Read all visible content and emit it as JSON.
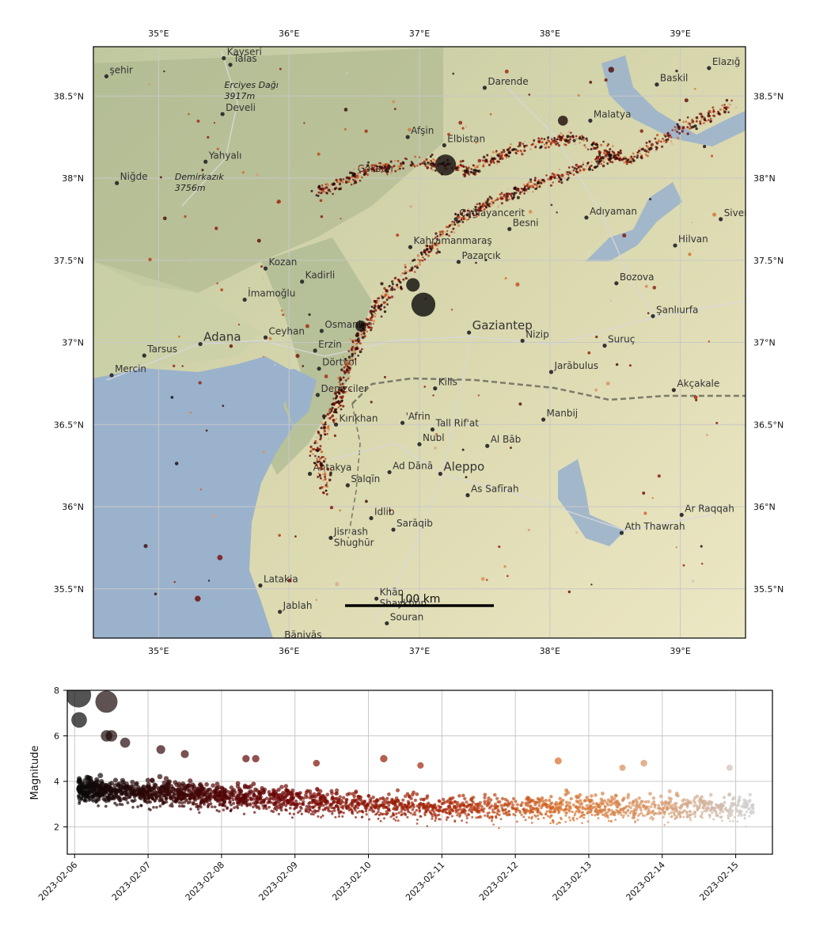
{
  "chart_data": [
    {
      "type": "scatter",
      "title": "",
      "lon_ticks": [
        "35°E",
        "36°E",
        "37°E",
        "38°E",
        "39°E"
      ],
      "lat_ticks": [
        "38.5°N",
        "38°N",
        "37.5°N",
        "37°N",
        "36.5°N",
        "36°N",
        "35.5°N"
      ],
      "xlim": [
        34.5,
        39.5
      ],
      "ylim": [
        35.2,
        38.8
      ],
      "scale_bar": "100 km",
      "places": [
        {
          "name": "Kayseri",
          "lon": 35.5,
          "lat": 38.73
        },
        {
          "name": "Talas",
          "lon": 35.55,
          "lat": 38.69
        },
        {
          "name": "şehir",
          "lon": 34.6,
          "lat": 38.62
        },
        {
          "name": "Erciyes Dağı",
          "lon": 35.48,
          "lat": 38.53,
          "italic": true
        },
        {
          "name": "3917m",
          "lon": 35.48,
          "lat": 38.53,
          "italic": true,
          "sub": true
        },
        {
          "name": "Develi",
          "lon": 35.49,
          "lat": 38.39
        },
        {
          "name": "Darende",
          "lon": 37.5,
          "lat": 38.55
        },
        {
          "name": "Elazığ",
          "lon": 39.22,
          "lat": 38.67
        },
        {
          "name": "Baskil",
          "lon": 38.82,
          "lat": 38.57
        },
        {
          "name": "Malatya",
          "lon": 38.31,
          "lat": 38.35
        },
        {
          "name": "Yahyalı",
          "lon": 35.36,
          "lat": 38.1
        },
        {
          "name": "Niğde",
          "lon": 34.68,
          "lat": 37.97
        },
        {
          "name": "Demirkazık",
          "lon": 35.1,
          "lat": 37.97,
          "italic": true
        },
        {
          "name": "3756m",
          "lon": 35.1,
          "lat": 37.97,
          "italic": true,
          "sub": true
        },
        {
          "name": "Afşin",
          "lon": 36.91,
          "lat": 38.25
        },
        {
          "name": "Elbistan",
          "lon": 37.19,
          "lat": 38.2
        },
        {
          "name": "Göksun",
          "lon": 36.5,
          "lat": 38.02
        },
        {
          "name": "Çağlayancerit",
          "lon": 37.28,
          "lat": 37.75
        },
        {
          "name": "Besni",
          "lon": 37.69,
          "lat": 37.69
        },
        {
          "name": "Adıyaman",
          "lon": 38.28,
          "lat": 37.76
        },
        {
          "name": "Siverek",
          "lon": 39.31,
          "lat": 37.75
        },
        {
          "name": "Hilvan",
          "lon": 38.96,
          "lat": 37.59
        },
        {
          "name": "Kahramanmaraş",
          "lon": 36.93,
          "lat": 37.58
        },
        {
          "name": "Pazarcık",
          "lon": 37.3,
          "lat": 37.49
        },
        {
          "name": "Kozan",
          "lon": 35.82,
          "lat": 37.45
        },
        {
          "name": "Kadirli",
          "lon": 36.1,
          "lat": 37.37
        },
        {
          "name": "Bozova",
          "lon": 38.51,
          "lat": 37.36
        },
        {
          "name": "İmamoğlu",
          "lon": 35.66,
          "lat": 37.26
        },
        {
          "name": "Şanlıurfa",
          "lon": 38.79,
          "lat": 37.16
        },
        {
          "name": "Gaziantep",
          "lon": 37.38,
          "lat": 37.06
        },
        {
          "name": "Nizip",
          "lon": 37.79,
          "lat": 37.01
        },
        {
          "name": "Suruç",
          "lon": 38.42,
          "lat": 36.98
        },
        {
          "name": "Adana",
          "lon": 35.32,
          "lat": 36.99
        },
        {
          "name": "Tarsus",
          "lon": 34.89,
          "lat": 36.92
        },
        {
          "name": "Ceyhan",
          "lon": 35.82,
          "lat": 37.03
        },
        {
          "name": "Osmaniye",
          "lon": 36.25,
          "lat": 37.07
        },
        {
          "name": "Erzin",
          "lon": 36.2,
          "lat": 36.95
        },
        {
          "name": "Dörtyol",
          "lon": 36.23,
          "lat": 36.84
        },
        {
          "name": "Mercin",
          "lon": 34.64,
          "lat": 36.8
        },
        {
          "name": "Jarābulus",
          "lon": 38.01,
          "lat": 36.82
        },
        {
          "name": "Kilis",
          "lon": 37.12,
          "lat": 36.72
        },
        {
          "name": "Akçakale",
          "lon": 38.95,
          "lat": 36.71
        },
        {
          "name": "Denizciler",
          "lon": 36.22,
          "lat": 36.68
        },
        {
          "name": "'Afrin",
          "lon": 36.87,
          "lat": 36.51
        },
        {
          "name": "Tall Rif'at",
          "lon": 37.1,
          "lat": 36.47
        },
        {
          "name": "Kırıkhan",
          "lon": 36.36,
          "lat": 36.5
        },
        {
          "name": "Manbij",
          "lon": 37.95,
          "lat": 36.53
        },
        {
          "name": "Al Bāb",
          "lon": 37.52,
          "lat": 36.37
        },
        {
          "name": "Nubl",
          "lon": 37.0,
          "lat": 36.38
        },
        {
          "name": "Aleppo",
          "lon": 37.16,
          "lat": 36.2
        },
        {
          "name": "Antakya",
          "lon": 36.16,
          "lat": 36.2
        },
        {
          "name": "Ad Dānā",
          "lon": 36.77,
          "lat": 36.21
        },
        {
          "name": "As Safīrah",
          "lon": 37.37,
          "lat": 36.07
        },
        {
          "name": "Salqīn",
          "lon": 36.45,
          "lat": 36.13
        },
        {
          "name": "Ar Raqqah",
          "lon": 39.01,
          "lat": 35.95
        },
        {
          "name": "Idlib",
          "lon": 36.63,
          "lat": 35.93
        },
        {
          "name": "Sarāqib",
          "lon": 36.8,
          "lat": 35.86
        },
        {
          "name": "Ath Thawrah",
          "lon": 38.55,
          "lat": 35.84
        },
        {
          "name": "Jisr ash",
          "lon": 36.32,
          "lat": 35.81
        },
        {
          "name": "Shughūr",
          "lon": 36.32,
          "lat": 35.81,
          "sub": true
        },
        {
          "name": "Latakia",
          "lon": 35.78,
          "lat": 35.52
        },
        {
          "name": "Khān",
          "lon": 36.67,
          "lat": 35.44
        },
        {
          "name": "Shaykhūn",
          "lon": 36.67,
          "lat": 35.44,
          "sub": true
        },
        {
          "name": "Jablah",
          "lon": 35.93,
          "lat": 35.36
        },
        {
          "name": "Souran",
          "lon": 36.75,
          "lat": 35.29
        },
        {
          "name": "Bāniyās",
          "lon": 35.94,
          "lat": 35.18
        }
      ]
    },
    {
      "type": "scatter",
      "title": "",
      "ylabel": "Magnitude",
      "xlabel": "",
      "ylim": [
        0.8,
        8
      ],
      "xlim": [
        "2023-02-05.9",
        "2023-02-15.5"
      ],
      "yticks": [
        2,
        4,
        6,
        8
      ],
      "xticks": [
        "2023-02-06",
        "2023-02-07",
        "2023-02-08",
        "2023-02-09",
        "2023-02-10",
        "2023-02-11",
        "2023-02-12",
        "2023-02-13",
        "2023-02-14",
        "2023-02-15"
      ],
      "color_scale": "time: black → dark red → orange → light grey",
      "notable_events": [
        {
          "date": "2023-02-06 01:17",
          "magnitude": 7.8
        },
        {
          "date": "2023-02-06 10:24",
          "magnitude": 7.5
        },
        {
          "date": "2023-02-06 01:28",
          "magnitude": 6.7
        },
        {
          "date": "2023-02-06 10:26",
          "magnitude": 6.0
        },
        {
          "date": "2023-02-06 12:02",
          "magnitude": 6.0
        },
        {
          "date": "2023-02-06 16:30",
          "magnitude": 5.7
        },
        {
          "date": "2023-02-07 04:10",
          "magnitude": 5.4
        },
        {
          "date": "2023-02-07 12:00",
          "magnitude": 5.2
        },
        {
          "date": "2023-02-08 08:00",
          "magnitude": 5.0
        },
        {
          "date": "2023-02-08 11:10",
          "magnitude": 5.0
        },
        {
          "date": "2023-02-09 07:00",
          "magnitude": 4.8
        },
        {
          "date": "2023-02-10 05:00",
          "magnitude": 5.0
        },
        {
          "date": "2023-02-10 17:00",
          "magnitude": 4.7
        },
        {
          "date": "2023-02-12 14:00",
          "magnitude": 4.9
        },
        {
          "date": "2023-02-13 11:00",
          "magnitude": 4.6
        },
        {
          "date": "2023-02-13 18:00",
          "magnitude": 4.8
        },
        {
          "date": "2023-02-14 22:00",
          "magnitude": 4.6
        }
      ]
    }
  ]
}
